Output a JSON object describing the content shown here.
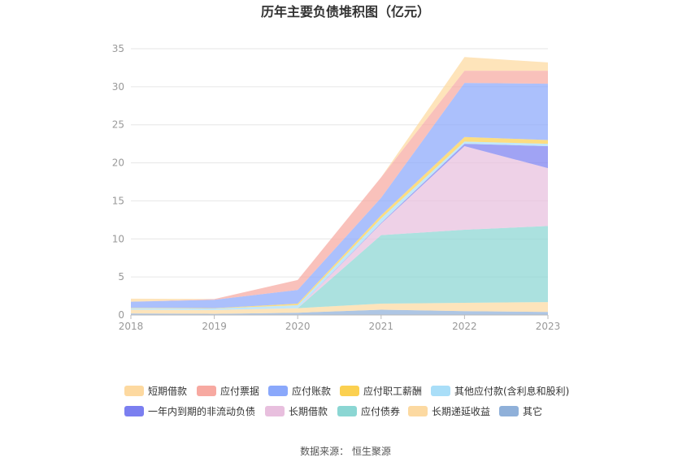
{
  "chart_data": {
    "type": "area",
    "stacked": true,
    "title": "历年主要负债堆积图（亿元）",
    "x": [
      "2018",
      "2019",
      "2020",
      "2021",
      "2022",
      "2023"
    ],
    "ylim": [
      0,
      35
    ],
    "yticks": [
      0,
      5,
      10,
      15,
      20,
      25,
      30,
      35
    ],
    "grid": true,
    "legend_position": "bottom",
    "series": [
      {
        "name": "其它",
        "color": "#8fb0d9",
        "values": [
          0.2,
          0.15,
          0.3,
          0.7,
          0.5,
          0.4
        ]
      },
      {
        "name": "长期递延收益",
        "color": "#fcd9a1",
        "values": [
          0.5,
          0.5,
          0.6,
          0.8,
          1.1,
          1.3
        ]
      },
      {
        "name": "应付债券",
        "color": "#8bd6d3",
        "values": [
          0.0,
          0.0,
          0.0,
          9.0,
          9.6,
          10.0
        ]
      },
      {
        "name": "长期借款",
        "color": "#e8bfde",
        "values": [
          0.0,
          0.0,
          0.0,
          1.5,
          11.0,
          7.6
        ]
      },
      {
        "name": "一年内到期的非流动负债",
        "color": "#7b7ff0",
        "values": [
          0.0,
          0.0,
          0.0,
          0.1,
          0.3,
          2.9
        ]
      },
      {
        "name": "其他应付款(含利息和股利)",
        "color": "#a9def8",
        "values": [
          0.2,
          0.2,
          0.4,
          0.6,
          0.3,
          0.3
        ]
      },
      {
        "name": "应付职工薪酬",
        "color": "#fbd050",
        "values": [
          0.05,
          0.05,
          0.2,
          0.4,
          0.6,
          0.5
        ]
      },
      {
        "name": "应付账款",
        "color": "#8aa8fb",
        "values": [
          0.8,
          1.1,
          1.8,
          2.3,
          7.1,
          7.4
        ]
      },
      {
        "name": "应付票据",
        "color": "#f7a9a1",
        "values": [
          0.0,
          0.1,
          1.3,
          2.7,
          1.6,
          1.7
        ]
      },
      {
        "name": "短期借款",
        "color": "#fdd9a0",
        "values": [
          0.4,
          0.0,
          0.0,
          0.0,
          1.8,
          1.1
        ]
      }
    ],
    "legend_order": [
      "短期借款",
      "应付票据",
      "应付账款",
      "应付职工薪酬",
      "其他应付款(含利息和股利)",
      "一年内到期的非流动负债",
      "长期借款",
      "应付债券",
      "长期递延收益",
      "其它"
    ]
  },
  "source_text": "数据来源：  恒生聚源"
}
